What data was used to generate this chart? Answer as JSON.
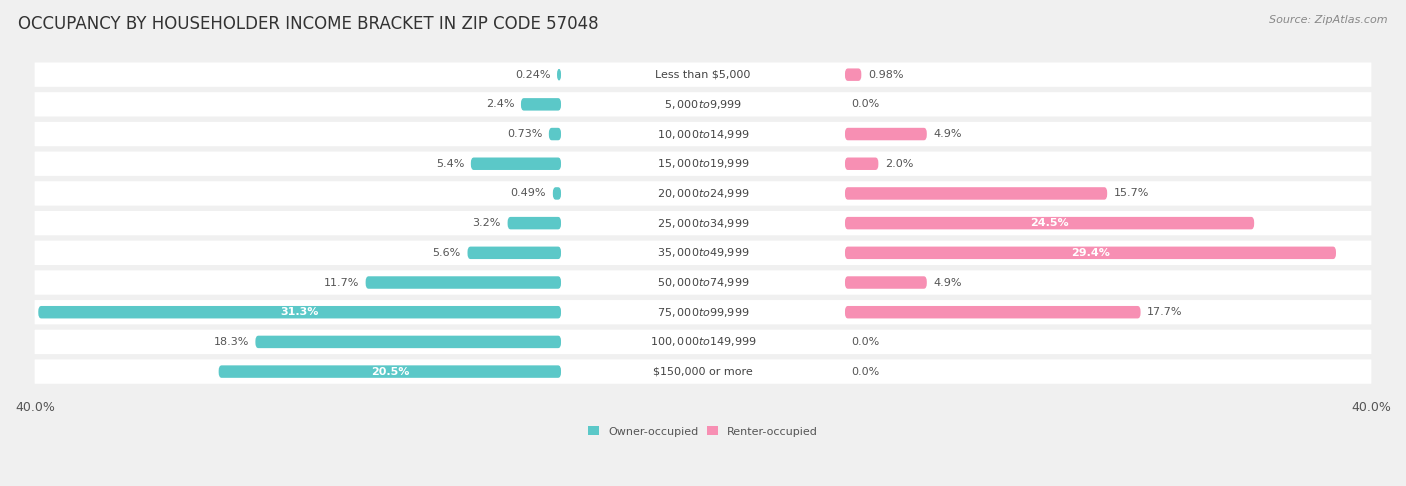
{
  "title": "OCCUPANCY BY HOUSEHOLDER INCOME BRACKET IN ZIP CODE 57048",
  "source": "Source: ZipAtlas.com",
  "categories": [
    "Less than $5,000",
    "$5,000 to $9,999",
    "$10,000 to $14,999",
    "$15,000 to $19,999",
    "$20,000 to $24,999",
    "$25,000 to $34,999",
    "$35,000 to $49,999",
    "$50,000 to $74,999",
    "$75,000 to $99,999",
    "$100,000 to $149,999",
    "$150,000 or more"
  ],
  "owner_values": [
    0.24,
    2.4,
    0.73,
    5.4,
    0.49,
    3.2,
    5.6,
    11.7,
    31.3,
    18.3,
    20.5
  ],
  "renter_values": [
    0.98,
    0.0,
    4.9,
    2.0,
    15.7,
    24.5,
    29.4,
    4.9,
    17.7,
    0.0,
    0.0
  ],
  "owner_color": "#5bc8c8",
  "renter_color": "#f78fb3",
  "axis_max": 40.0,
  "label_zone": 8.5,
  "background_color": "#f0f0f0",
  "row_bg_color": "#ffffff",
  "title_fontsize": 12,
  "label_fontsize": 8.0,
  "cat_fontsize": 8.0,
  "tick_fontsize": 9,
  "source_fontsize": 8.0
}
